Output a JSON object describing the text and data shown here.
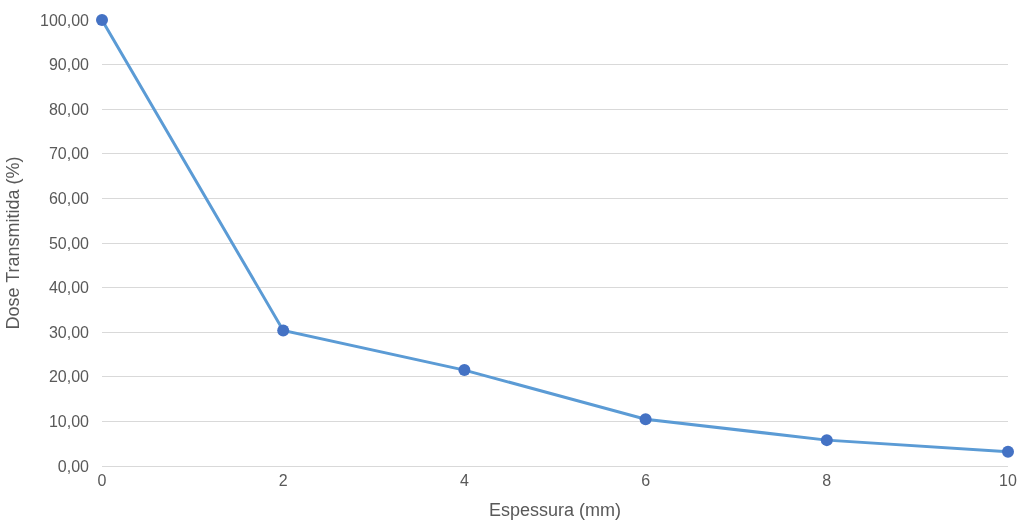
{
  "chart_data": {
    "type": "line",
    "xlabel": "Espessura (mm)",
    "ylabel": "Dose Transmitida (%)",
    "x": [
      0,
      2,
      4,
      6,
      8,
      10
    ],
    "series": [
      {
        "color": "#5b9bd5",
        "colors": [
          "#4472c4",
          "#4472c4",
          "#4472c4",
          "#4472c4",
          "#4472c4",
          "#4472c4"
        ],
        "values": [
          100,
          30.4,
          21.5,
          10.5,
          5.8,
          3.2
        ]
      }
    ],
    "xlim": [
      0,
      10
    ],
    "xticks": [
      0,
      2,
      4,
      6,
      8,
      10
    ],
    "ylim": [
      0,
      100
    ],
    "yticks": [
      {
        "value": 0,
        "label": "0,00"
      },
      {
        "value": 10,
        "label": "10,00"
      },
      {
        "value": 20,
        "label": "20,00"
      },
      {
        "value": 30,
        "label": "30,00"
      },
      {
        "value": 40,
        "label": "40,00"
      },
      {
        "value": 50,
        "label": "50,00"
      },
      {
        "value": 60,
        "label": "60,00"
      },
      {
        "value": 70,
        "label": "70,00"
      },
      {
        "value": 80,
        "label": "80,00"
      },
      {
        "value": 90,
        "label": "90,00"
      },
      {
        "value": 100,
        "label": "100,00"
      }
    ],
    "grid": "y",
    "legend": false,
    "marker": "circle",
    "line_style": "solid"
  }
}
